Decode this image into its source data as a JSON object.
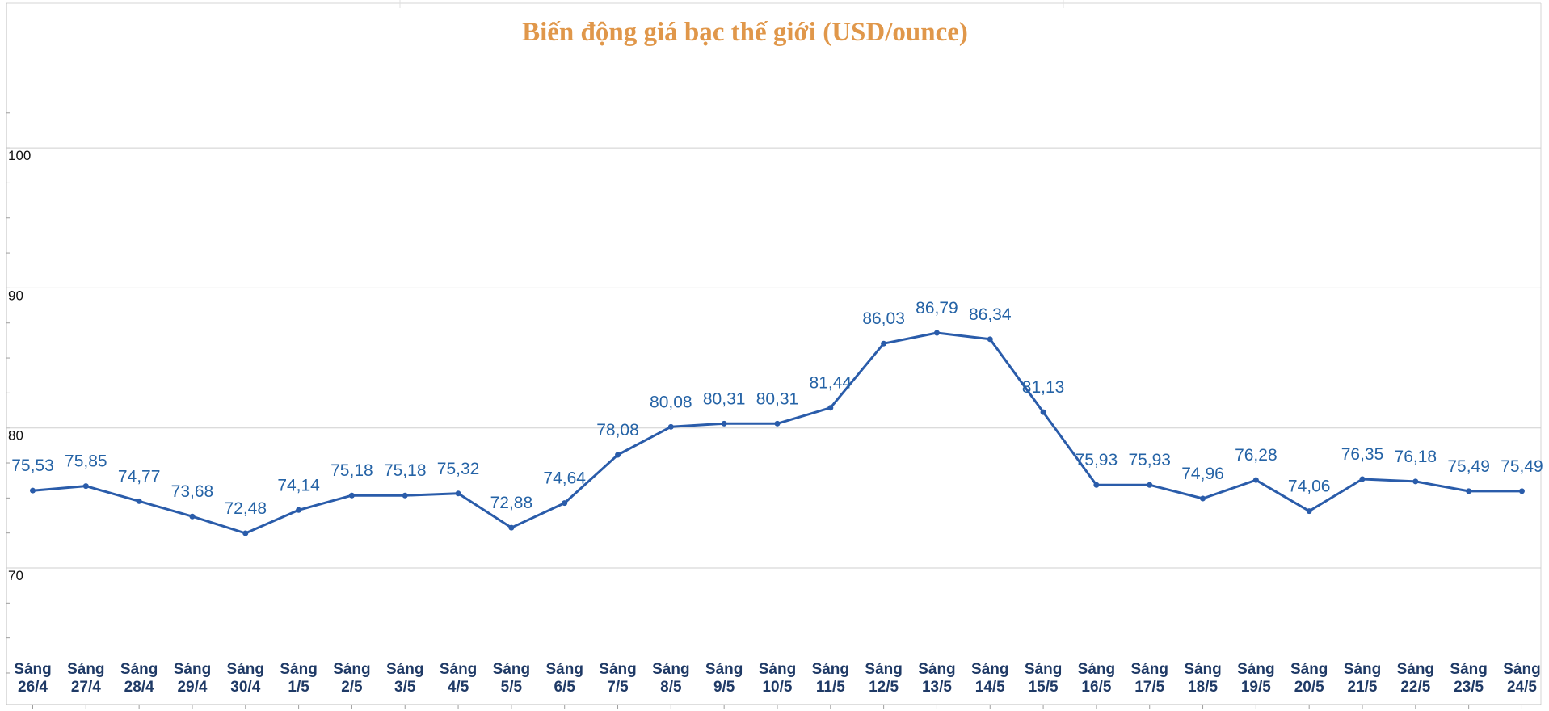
{
  "chart_data": {
    "type": "line",
    "title": "Biến động giá bạc thế giới (USD/ounce)",
    "xlabel": "",
    "ylabel": "",
    "ylim": [
      62.5,
      103.5
    ],
    "y_ticks": [
      70,
      80,
      90,
      100
    ],
    "grid": true,
    "line_color": "#2A5CAA",
    "title_color": "#E0974A",
    "label_color": "#2563A6",
    "category_color": "#1F3A66",
    "grid_color": "#CFCFCF",
    "categories": [
      [
        "Sáng",
        "26/4"
      ],
      [
        "Sáng",
        "27/4"
      ],
      [
        "Sáng",
        "28/4"
      ],
      [
        "Sáng",
        "29/4"
      ],
      [
        "Sáng",
        "30/4"
      ],
      [
        "Sáng",
        "1/5"
      ],
      [
        "Sáng",
        "2/5"
      ],
      [
        "Sáng",
        "3/5"
      ],
      [
        "Sáng",
        "4/5"
      ],
      [
        "Sáng",
        "5/5"
      ],
      [
        "Sáng",
        "6/5"
      ],
      [
        "Sáng",
        "7/5"
      ],
      [
        "Sáng",
        "8/5"
      ],
      [
        "Sáng",
        "9/5"
      ],
      [
        "Sáng",
        "10/5"
      ],
      [
        "Sáng",
        "11/5"
      ],
      [
        "Sáng",
        "12/5"
      ],
      [
        "Sáng",
        "13/5"
      ],
      [
        "Sáng",
        "14/5"
      ],
      [
        "Sáng",
        "15/5"
      ],
      [
        "Sáng",
        "16/5"
      ],
      [
        "Sáng",
        "17/5"
      ],
      [
        "Sáng",
        "18/5"
      ],
      [
        "Sáng",
        "19/5"
      ],
      [
        "Sáng",
        "20/5"
      ],
      [
        "Sáng",
        "21/5"
      ],
      [
        "Sáng",
        "22/5"
      ],
      [
        "Sáng",
        "23/5"
      ],
      [
        "Sáng",
        "24/5"
      ]
    ],
    "values": [
      75.53,
      75.85,
      74.77,
      73.68,
      72.48,
      74.14,
      75.18,
      75.18,
      75.32,
      72.88,
      74.64,
      78.08,
      80.08,
      80.31,
      80.31,
      81.44,
      86.03,
      86.79,
      86.34,
      81.13,
      75.93,
      75.93,
      74.96,
      76.28,
      74.06,
      76.35,
      76.18,
      75.49,
      75.49
    ],
    "data_labels": [
      "75,53",
      "75,85",
      "74,77",
      "73,68",
      "72,48",
      "74,14",
      "75,18",
      "75,18",
      "75,32",
      "72,88",
      "74,64",
      "78,08",
      "80,08",
      "80,31",
      "80,31",
      "81,44",
      "86,03",
      "86,79",
      "86,34",
      "81,13",
      "75,93",
      "75,93",
      "74,96",
      "76,28",
      "74,06",
      "76,35",
      "76,18",
      "75,49",
      "75,49"
    ]
  }
}
